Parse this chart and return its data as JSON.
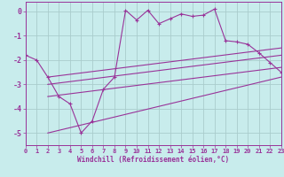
{
  "xlabel": "Windchill (Refroidissement éolien,°C)",
  "background_color": "#c8ecec",
  "grid_color": "#aacccc",
  "line_color": "#993399",
  "xlim": [
    0,
    23
  ],
  "ylim": [
    -5.5,
    0.4
  ],
  "yticks": [
    0,
    -1,
    -2,
    -3,
    -4,
    -5
  ],
  "xticks": [
    0,
    1,
    2,
    3,
    4,
    5,
    6,
    7,
    8,
    9,
    10,
    11,
    12,
    13,
    14,
    15,
    16,
    17,
    18,
    19,
    20,
    21,
    22,
    23
  ],
  "main_x": [
    0,
    1,
    2,
    3,
    4,
    5,
    6,
    7,
    8,
    9,
    10,
    11,
    12,
    13,
    14,
    15,
    16,
    17,
    18,
    19,
    20,
    21,
    22,
    23
  ],
  "main_y": [
    -1.8,
    -2.0,
    -2.7,
    -3.5,
    -3.8,
    -5.0,
    -4.5,
    -3.2,
    -2.7,
    0.05,
    -0.35,
    0.05,
    -0.5,
    -0.3,
    -0.1,
    -0.2,
    -0.15,
    0.1,
    -1.2,
    -1.25,
    -1.35,
    -1.7,
    -2.1,
    -2.5
  ],
  "upper_line_x": [
    2,
    23
  ],
  "upper_line_y": [
    -2.7,
    -1.5
  ],
  "mid_line_x": [
    2,
    23
  ],
  "mid_line_y": [
    -3.0,
    -1.8
  ],
  "lower_line_x": [
    2,
    23
  ],
  "lower_line_y": [
    -3.5,
    -2.3
  ],
  "diag_line_x": [
    2,
    23
  ],
  "diag_line_y": [
    -5.0,
    -2.7
  ]
}
